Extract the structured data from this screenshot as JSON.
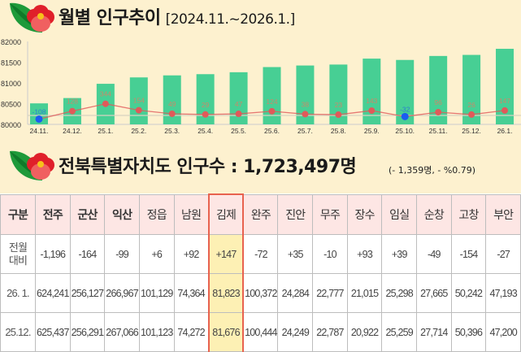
{
  "header1": {
    "title": "월별 인구추이",
    "range": "[2024.11.~2026.1.]"
  },
  "header2": {
    "title": "전북특별자치도 인구수 : 1,723,497명",
    "change": "(- 1,359명, - %0.79)"
  },
  "colors": {
    "background": "#fdf1cf",
    "bar": "#47cf94",
    "line": "#e05a5a",
    "negative_point": "#1b5cf0",
    "highlight": "#fdf0b4",
    "highlight_border": "#e8624f",
    "table_header": "#fde6e4"
  },
  "icons": {
    "logo": "camellia-flower-icon"
  },
  "chart_data": {
    "type": "bar+line",
    "title": "월별 인구추이",
    "categories": [
      "24.11.",
      "24.12.",
      "25.1.",
      "25.2.",
      "25.3.",
      "25.4.",
      "25.5.",
      "25.6.",
      "25.7.",
      "25.8.",
      "25.9.",
      "25.10.",
      "25.11.",
      "25.12.",
      "26.1."
    ],
    "series": [
      {
        "type": "bar",
        "values": [
          80507,
          80635,
          80979,
          81133,
          81182,
          81211,
          81258,
          81382,
          81420,
          81443,
          81586,
          81554,
          81650,
          81676,
          81823
        ]
      },
      {
        "type": "line",
        "values": [
          -108,
          128,
          344,
          154,
          49,
          29,
          47,
          124,
          38,
          23,
          143,
          -32,
          96,
          26,
          147
        ]
      }
    ],
    "ylim": [
      80000,
      82000
    ],
    "yticks": [
      80000,
      80500,
      81000,
      81500,
      82000
    ],
    "grid": false,
    "legend": "none"
  },
  "table": {
    "columns": [
      "구분",
      "전주",
      "군산",
      "익산",
      "정읍",
      "남원",
      "김제",
      "완주",
      "진안",
      "무주",
      "장수",
      "임실",
      "순창",
      "고창",
      "부안"
    ],
    "highlight_column": "김제",
    "rows": [
      {
        "label": [
          "전월",
          "대비"
        ],
        "values": [
          "-1,196",
          "-164",
          "-99",
          "+6",
          "+92",
          "+147",
          "-72",
          "+35",
          "-10",
          "+93",
          "+39",
          "-49",
          "-154",
          "-27"
        ]
      },
      {
        "label": [
          "26. 1."
        ],
        "values": [
          "624,241",
          "256,127",
          "266,967",
          "101,129",
          "74,364",
          "81,823",
          "100,372",
          "24,284",
          "22,777",
          "21,015",
          "25,298",
          "27,665",
          "50,242",
          "47,193"
        ]
      },
      {
        "label": [
          "25.12."
        ],
        "values": [
          "625,437",
          "256,291",
          "267,066",
          "101,123",
          "74,272",
          "81,676",
          "100,444",
          "24,249",
          "22,787",
          "20,922",
          "25,259",
          "27,714",
          "50,396",
          "47,200"
        ]
      }
    ]
  }
}
